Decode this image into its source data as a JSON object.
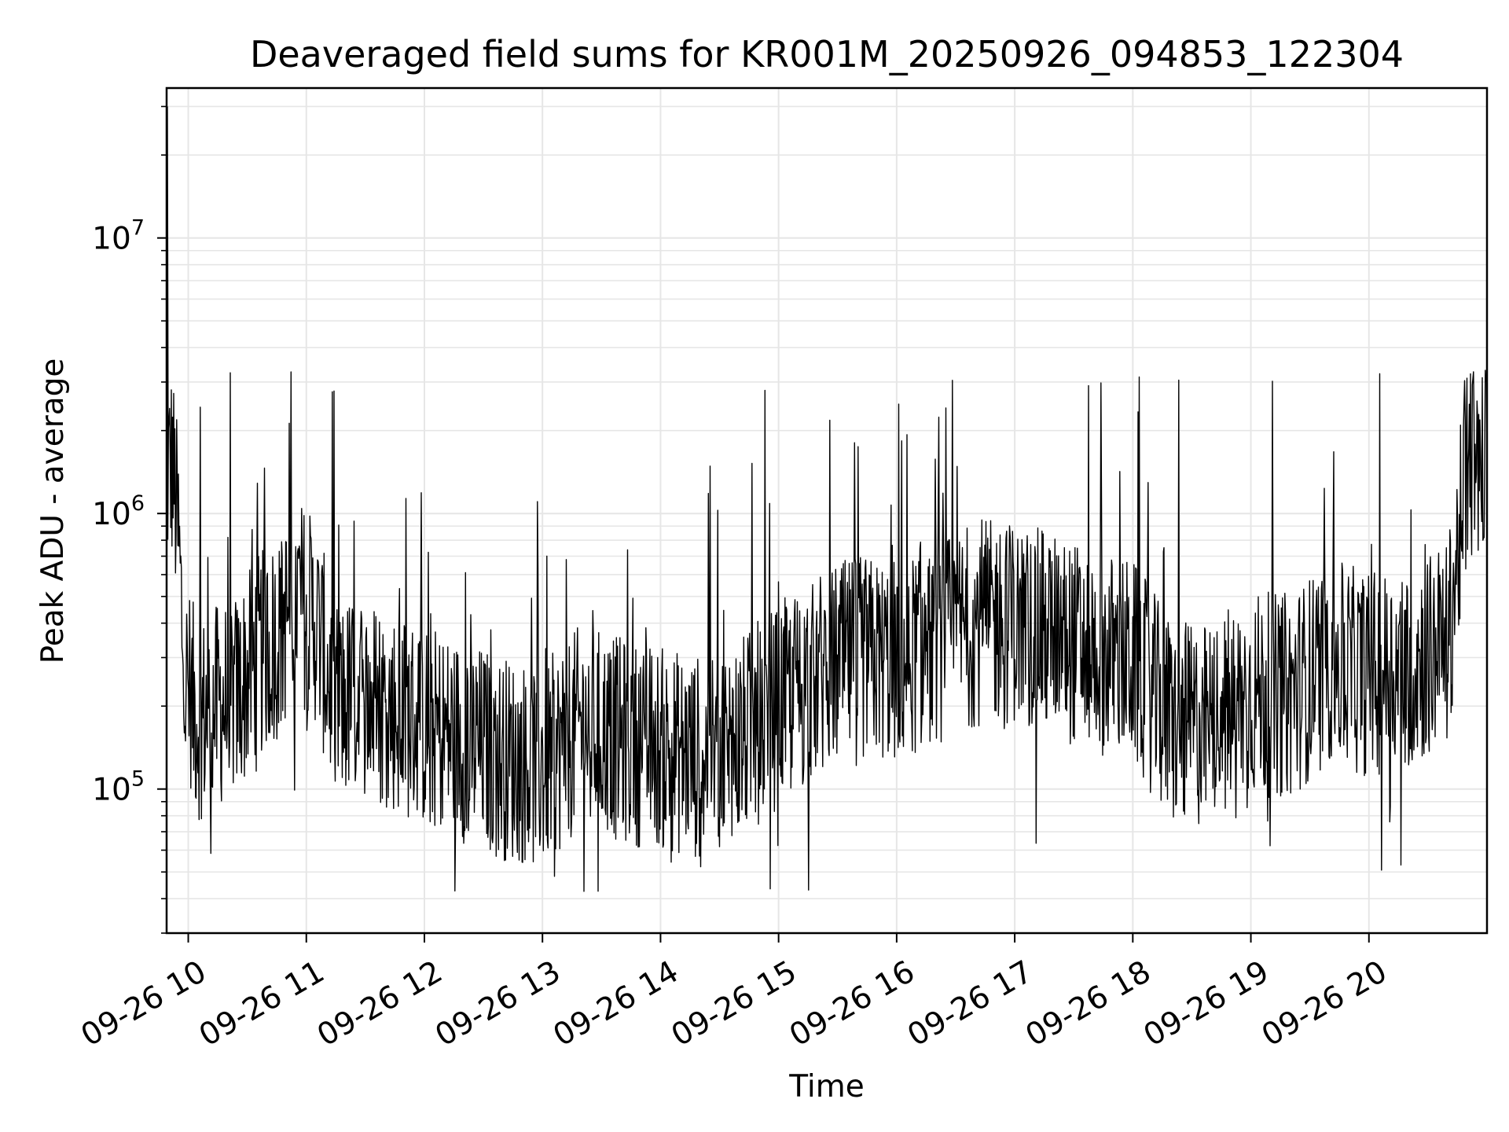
{
  "chart_data": {
    "type": "line",
    "title": "Deaveraged field sums for KR001M_20250926_094853_122304",
    "xlabel": "Time",
    "ylabel": "Peak ADU - average",
    "y_scale": "log",
    "ylim": [
      30000,
      35000000
    ],
    "xlim": [
      "2025-09-26T09:49:00",
      "2025-09-26T21:00:00"
    ],
    "grid": true,
    "legend": "none",
    "x_ticks": [
      {
        "value": "2025-09-26T10:00",
        "label": "09-26 10"
      },
      {
        "value": "2025-09-26T11:00",
        "label": "09-26 11"
      },
      {
        "value": "2025-09-26T12:00",
        "label": "09-26 12"
      },
      {
        "value": "2025-09-26T13:00",
        "label": "09-26 13"
      },
      {
        "value": "2025-09-26T14:00",
        "label": "09-26 14"
      },
      {
        "value": "2025-09-26T15:00",
        "label": "09-26 15"
      },
      {
        "value": "2025-09-26T16:00",
        "label": "09-26 16"
      },
      {
        "value": "2025-09-26T17:00",
        "label": "09-26 17"
      },
      {
        "value": "2025-09-26T18:00",
        "label": "09-26 18"
      },
      {
        "value": "2025-09-26T19:00",
        "label": "09-26 19"
      },
      {
        "value": "2025-09-26T20:00",
        "label": "09-26 20"
      }
    ],
    "y_ticks": [
      {
        "value": 100000,
        "base": "10",
        "exp": "5"
      },
      {
        "value": 1000000,
        "base": "10",
        "exp": "6"
      },
      {
        "value": 10000000,
        "base": "10",
        "exp": "7"
      }
    ],
    "series": [
      {
        "color": "#000000",
        "x": [
          "2025-09-26T09:49",
          "2025-09-26T09:52",
          "2025-09-26T09:55",
          "2025-09-26T09:58",
          "2025-09-26T10:05",
          "2025-09-26T10:15",
          "2025-09-26T10:25",
          "2025-09-26T10:35",
          "2025-09-26T10:45",
          "2025-09-26T10:55",
          "2025-09-26T11:05",
          "2025-09-26T11:15",
          "2025-09-26T11:25",
          "2025-09-26T11:40",
          "2025-09-26T12:00",
          "2025-09-26T12:20",
          "2025-09-26T12:40",
          "2025-09-26T13:00",
          "2025-09-26T13:20",
          "2025-09-26T13:40",
          "2025-09-26T14:00",
          "2025-09-26T14:20",
          "2025-09-26T14:40",
          "2025-09-26T15:00",
          "2025-09-26T15:20",
          "2025-09-26T15:40",
          "2025-09-26T16:00",
          "2025-09-26T16:20",
          "2025-09-26T16:40",
          "2025-09-26T17:00",
          "2025-09-26T17:20",
          "2025-09-26T17:40",
          "2025-09-26T18:00",
          "2025-09-26T18:20",
          "2025-09-26T18:40",
          "2025-09-26T19:00",
          "2025-09-26T19:20",
          "2025-09-26T19:40",
          "2025-09-26T20:00",
          "2025-09-26T20:20",
          "2025-09-26T20:40",
          "2025-09-26T20:50",
          "2025-09-26T21:00"
        ],
        "y": [
          1400000,
          1500000,
          800000,
          250000,
          180000,
          200000,
          220000,
          300000,
          350000,
          500000,
          400000,
          200000,
          220000,
          200000,
          170000,
          150000,
          130000,
          120000,
          170000,
          150000,
          140000,
          130000,
          150000,
          200000,
          260000,
          300000,
          290000,
          340000,
          400000,
          400000,
          360000,
          320000,
          290000,
          170000,
          170000,
          220000,
          220000,
          290000,
          260000,
          280000,
          330000,
          1500000,
          1700000
        ]
      }
    ]
  }
}
